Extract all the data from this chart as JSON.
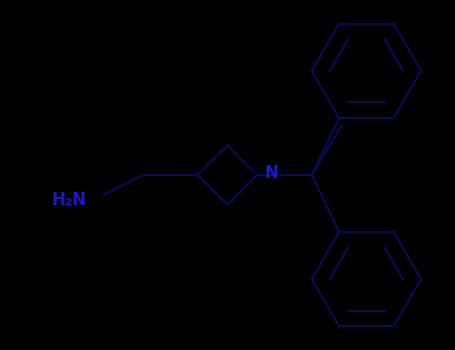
{
  "background_color": "#000000",
  "bond_color": "#0a0a5a",
  "text_color": "#1a1acc",
  "line_width": 1.5,
  "font_size": 12,
  "figsize": [
    4.55,
    3.5
  ],
  "dpi": 100,
  "NH2_label": "H₂N",
  "N_label": "N",
  "xlim": [
    -4.5,
    4.5
  ],
  "ylim": [
    -3.5,
    3.5
  ]
}
